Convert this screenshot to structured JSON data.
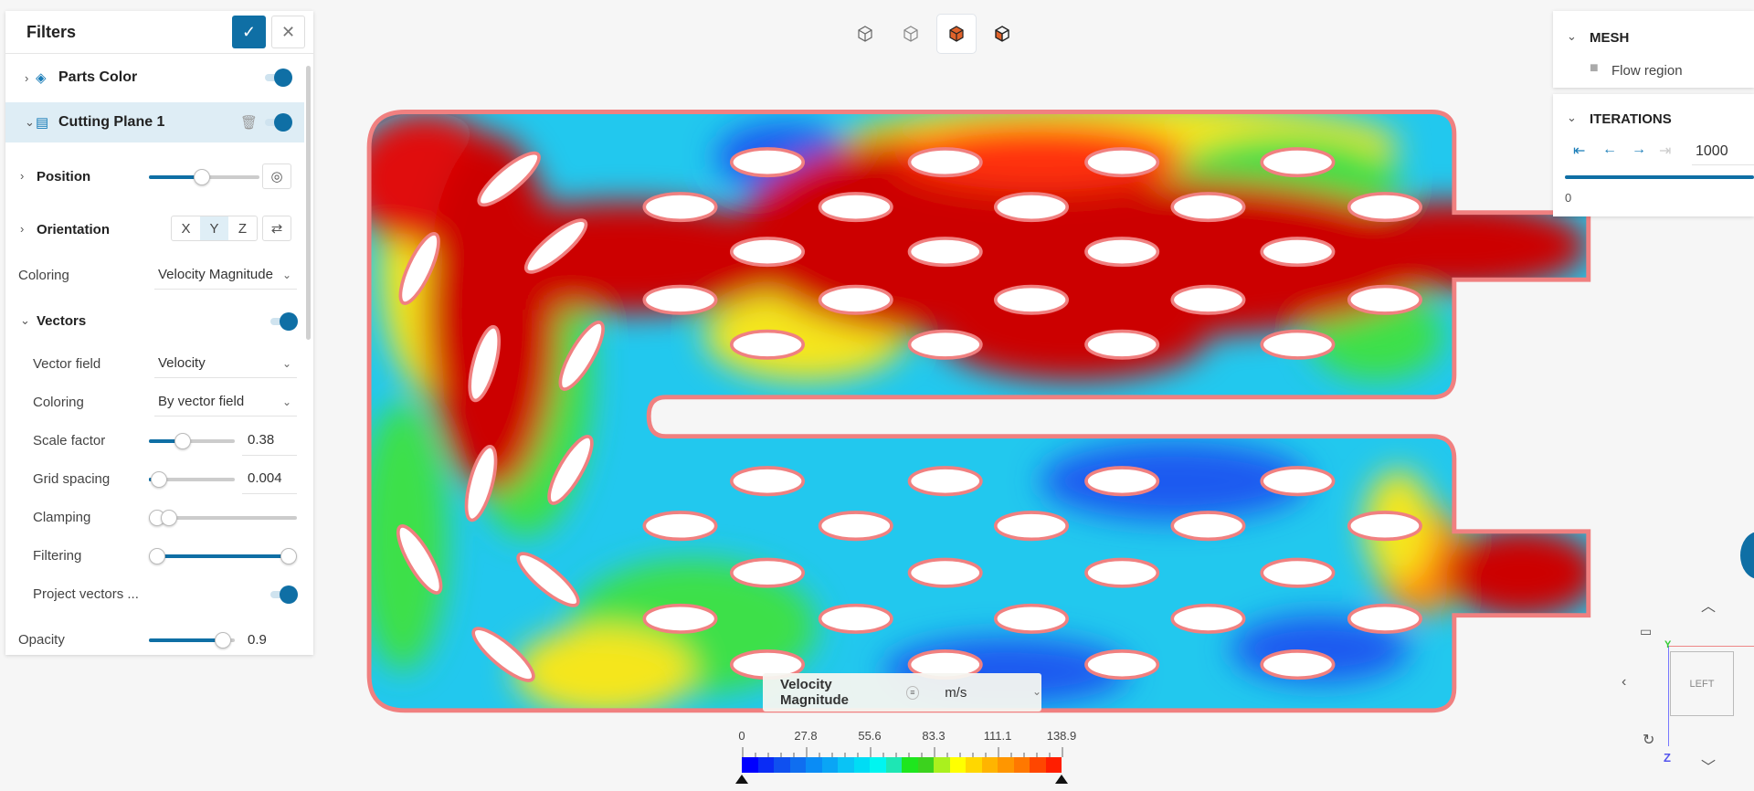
{
  "filters_panel": {
    "title": "Filters",
    "confirm_icon": "check-icon",
    "close_icon": "close-icon",
    "items": [
      {
        "label": "Parts Color",
        "icon": "paint-bucket-icon",
        "enabled": true
      },
      {
        "label": "Cutting Plane 1",
        "icon": "cutting-plane-icon",
        "enabled": true,
        "selected": true
      }
    ],
    "position": {
      "label": "Position",
      "fraction": 0.48
    },
    "orientation": {
      "label": "Orientation",
      "options": [
        "X",
        "Y",
        "Z"
      ],
      "selected": "Y"
    },
    "coloring": {
      "label": "Coloring",
      "value": "Velocity Magnitude"
    },
    "vectors": {
      "label": "Vectors",
      "enabled": true,
      "vector_field": {
        "label": "Vector field",
        "value": "Velocity"
      },
      "coloring": {
        "label": "Coloring",
        "value": "By vector field"
      },
      "scale_factor": {
        "label": "Scale factor",
        "value": "0.38"
      },
      "grid_spacing": {
        "label": "Grid spacing",
        "value": "0.004"
      },
      "clamping": {
        "label": "Clamping",
        "range": [
          0,
          0.08
        ]
      },
      "filtering": {
        "label": "Filtering",
        "range": [
          0,
          1
        ]
      },
      "project_vectors": {
        "label": "Project vectors ...",
        "enabled": true
      }
    },
    "opacity": {
      "label": "Opacity",
      "value": "0.9"
    }
  },
  "mesh_panel": {
    "title": "MESH",
    "items": [
      {
        "label": "Flow region"
      }
    ]
  },
  "iterations_panel": {
    "title": "ITERATIONS",
    "value": "1000",
    "min_label": "0",
    "progress": 1.0
  },
  "legend": {
    "title": "Velocity Magnitude",
    "unit": "m/s",
    "ticks": [
      "0",
      "27.8",
      "55.6",
      "83.3",
      "111.1",
      "138.9"
    ],
    "colors": [
      "#0000ff",
      "#0a2cf5",
      "#0f50f0",
      "#0f6ef0",
      "#0a8cf5",
      "#0aa5f5",
      "#0ac3f5",
      "#00dcf5",
      "#00f5f0",
      "#1ee6b4",
      "#1ee61e",
      "#3cd21e",
      "#aaf01e",
      "#ffff00",
      "#ffd700",
      "#ffb400",
      "#ff9600",
      "#ff7800",
      "#ff4600",
      "#ff1e00"
    ]
  },
  "view_cube": {
    "face": "LEFT",
    "axis_y": "Y",
    "axis_z": "Z"
  },
  "accent": "#0f6fa5"
}
